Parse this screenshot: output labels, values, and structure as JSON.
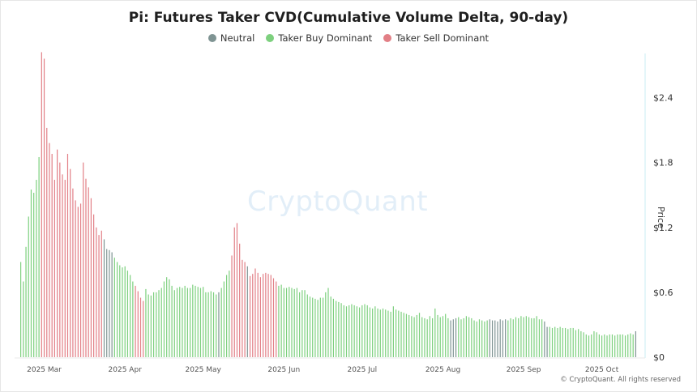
{
  "title": "Pi: Futures Taker CVD(Cumulative Volume Delta, 90-day)",
  "watermark": "CryptoQuant",
  "credit": "© CryptoQuant. All rights reserved",
  "colors": {
    "neutral": "#7f9493",
    "buy": "#7dd07e",
    "sell": "#e27f86",
    "axis_line": "#c9eef3",
    "tick_text": "#555555"
  },
  "legend": [
    {
      "key": "neutral",
      "label": "Neutral"
    },
    {
      "key": "buy",
      "label": "Taker Buy Dominant"
    },
    {
      "key": "sell",
      "label": "Taker Sell Dominant"
    }
  ],
  "chart_data": {
    "type": "bar",
    "title": "Pi: Futures Taker CVD(Cumulative Volume Delta, 90-day)",
    "ylabel": "Price",
    "ylim": [
      0,
      2.8
    ],
    "ytick_values": [
      0,
      0.6,
      1.2,
      1.8,
      2.4
    ],
    "ytick_labels": [
      "$0",
      "$0.6",
      "$1.2",
      "$1.8",
      "$2.4"
    ],
    "x_start": "2025-02-20",
    "xtick_labels": [
      {
        "label": "2025 Mar",
        "day": 9
      },
      {
        "label": "2025 Apr",
        "day": 40
      },
      {
        "label": "2025 May",
        "day": 70
      },
      {
        "label": "2025 Jun",
        "day": 101
      },
      {
        "label": "2025 Jul",
        "day": 131
      },
      {
        "label": "2025 Aug",
        "day": 162
      },
      {
        "label": "2025 Sep",
        "day": 193
      },
      {
        "label": "2025 Oct",
        "day": 223
      }
    ],
    "segments": [
      {
        "state": "buy",
        "values": [
          0.88,
          0.7,
          1.02,
          1.3,
          1.55,
          1.52,
          1.64,
          1.85
        ]
      },
      {
        "state": "sell",
        "values": [
          2.82,
          2.76,
          2.12,
          1.98,
          1.88,
          1.64,
          1.92,
          1.8,
          1.69,
          1.64,
          1.88,
          1.74,
          1.56,
          1.45,
          1.39,
          1.42,
          1.8,
          1.65,
          1.57,
          1.47,
          1.32,
          1.2,
          1.13,
          1.17
        ]
      },
      {
        "state": "neutral",
        "values": [
          1.09,
          1.0,
          0.99,
          0.97
        ]
      },
      {
        "state": "buy",
        "values": [
          0.92,
          0.88,
          0.85,
          0.83,
          0.84,
          0.8,
          0.76,
          0.7
        ]
      },
      {
        "state": "sell",
        "values": [
          0.66,
          0.61,
          0.55,
          0.52
        ]
      },
      {
        "state": "buy",
        "values": [
          0.63,
          0.58,
          0.57,
          0.6,
          0.6,
          0.62,
          0.64,
          0.7,
          0.74,
          0.72,
          0.66,
          0.62,
          0.64,
          0.65,
          0.64,
          0.66,
          0.64,
          0.64,
          0.67,
          0.66,
          0.65,
          0.64,
          0.65,
          0.6,
          0.6,
          0.61,
          0.6,
          0.58
        ]
      },
      {
        "state": "neutral",
        "values": [
          0.6
        ]
      },
      {
        "state": "buy",
        "values": [
          0.64,
          0.7,
          0.76,
          0.8
        ]
      },
      {
        "state": "sell",
        "values": [
          0.94,
          1.2,
          1.24,
          1.05,
          0.9,
          0.88
        ]
      },
      {
        "state": "neutral",
        "values": [
          0.84
        ]
      },
      {
        "state": "sell",
        "values": [
          0.75,
          0.77,
          0.82,
          0.78,
          0.74,
          0.77,
          0.78,
          0.77,
          0.76,
          0.73,
          0.7
        ]
      },
      {
        "state": "buy",
        "values": [
          0.66,
          0.67,
          0.64,
          0.64,
          0.65,
          0.64,
          0.63,
          0.64,
          0.6,
          0.62,
          0.62,
          0.58,
          0.56,
          0.55,
          0.54,
          0.53,
          0.55,
          0.55,
          0.6,
          0.64,
          0.56,
          0.54,
          0.52,
          0.51,
          0.5,
          0.48,
          0.47,
          0.48,
          0.49,
          0.48,
          0.47,
          0.46,
          0.48,
          0.49,
          0.48,
          0.46,
          0.45,
          0.47,
          0.45,
          0.44,
          0.45,
          0.44,
          0.43,
          0.42,
          0.47,
          0.44,
          0.43,
          0.42,
          0.41,
          0.4,
          0.39,
          0.38,
          0.37,
          0.39,
          0.41,
          0.37,
          0.36,
          0.35,
          0.38,
          0.36,
          0.45,
          0.39,
          0.37,
          0.38,
          0.4,
          0.36
        ]
      },
      {
        "state": "neutral",
        "values": [
          0.34,
          0.35,
          0.36
        ]
      },
      {
        "state": "buy",
        "values": [
          0.37,
          0.35,
          0.36,
          0.38,
          0.37,
          0.36,
          0.34,
          0.33,
          0.35,
          0.34,
          0.33,
          0.34
        ]
      },
      {
        "state": "neutral",
        "values": [
          0.35,
          0.34,
          0.34,
          0.33,
          0.35,
          0.34,
          0.35
        ]
      },
      {
        "state": "buy",
        "values": [
          0.34,
          0.36,
          0.35,
          0.37,
          0.36,
          0.38,
          0.37,
          0.38,
          0.37,
          0.36,
          0.36,
          0.38,
          0.35,
          0.35
        ]
      },
      {
        "state": "neutral",
        "values": [
          0.33,
          0.28
        ]
      },
      {
        "state": "buy",
        "values": [
          0.28,
          0.27,
          0.28,
          0.27,
          0.28,
          0.27,
          0.27,
          0.26,
          0.27,
          0.27,
          0.25,
          0.26,
          0.24,
          0.23,
          0.21,
          0.2,
          0.21,
          0.24,
          0.23,
          0.21,
          0.2,
          0.21,
          0.2,
          0.21,
          0.21,
          0.2,
          0.21,
          0.21,
          0.21,
          0.2,
          0.21,
          0.22,
          0.21
        ]
      },
      {
        "state": "neutral",
        "values": [
          0.24
        ]
      }
    ]
  }
}
